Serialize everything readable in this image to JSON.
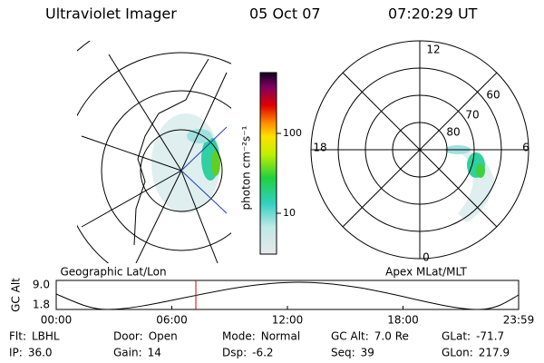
{
  "header": {
    "instrument": "Ultraviolet Imager",
    "date": "05 Oct 07",
    "time": "07:20:29 UT"
  },
  "colorbar": {
    "label": "photon cm⁻²s⁻¹",
    "ticks": [
      "100",
      "10"
    ]
  },
  "left_map": {
    "caption": "Geographic Lat/Lon"
  },
  "right_map": {
    "caption": "Apex MLat/MLT",
    "mlt_labels": [
      "12",
      "18",
      "6",
      "0"
    ],
    "lat_labels": [
      "60",
      "70",
      "80"
    ]
  },
  "alt_plot": {
    "ylabel": "GC Alt",
    "yticks": [
      "9.0",
      "1.8"
    ],
    "xticks": [
      "00:00",
      "06:00",
      "12:00",
      "18:00",
      "23:59"
    ]
  },
  "footer": {
    "rows": [
      [
        {
          "label": "Flt:",
          "value": "LBHL"
        },
        {
          "label": "Door:",
          "value": "Open"
        },
        {
          "label": "Mode:",
          "value": "Normal"
        },
        {
          "label": "GC Alt:",
          "value": "7.0 Re"
        },
        {
          "label": "GLat:",
          "value": "-71.7"
        }
      ],
      [
        {
          "label": "IP:",
          "value": "36.0"
        },
        {
          "label": "Gain:",
          "value": "14"
        },
        {
          "label": "Dsp:",
          "value": "-6.2"
        },
        {
          "label": "Seq:",
          "value": "39"
        },
        {
          "label": "GLon:",
          "value": "217.9"
        }
      ]
    ]
  }
}
